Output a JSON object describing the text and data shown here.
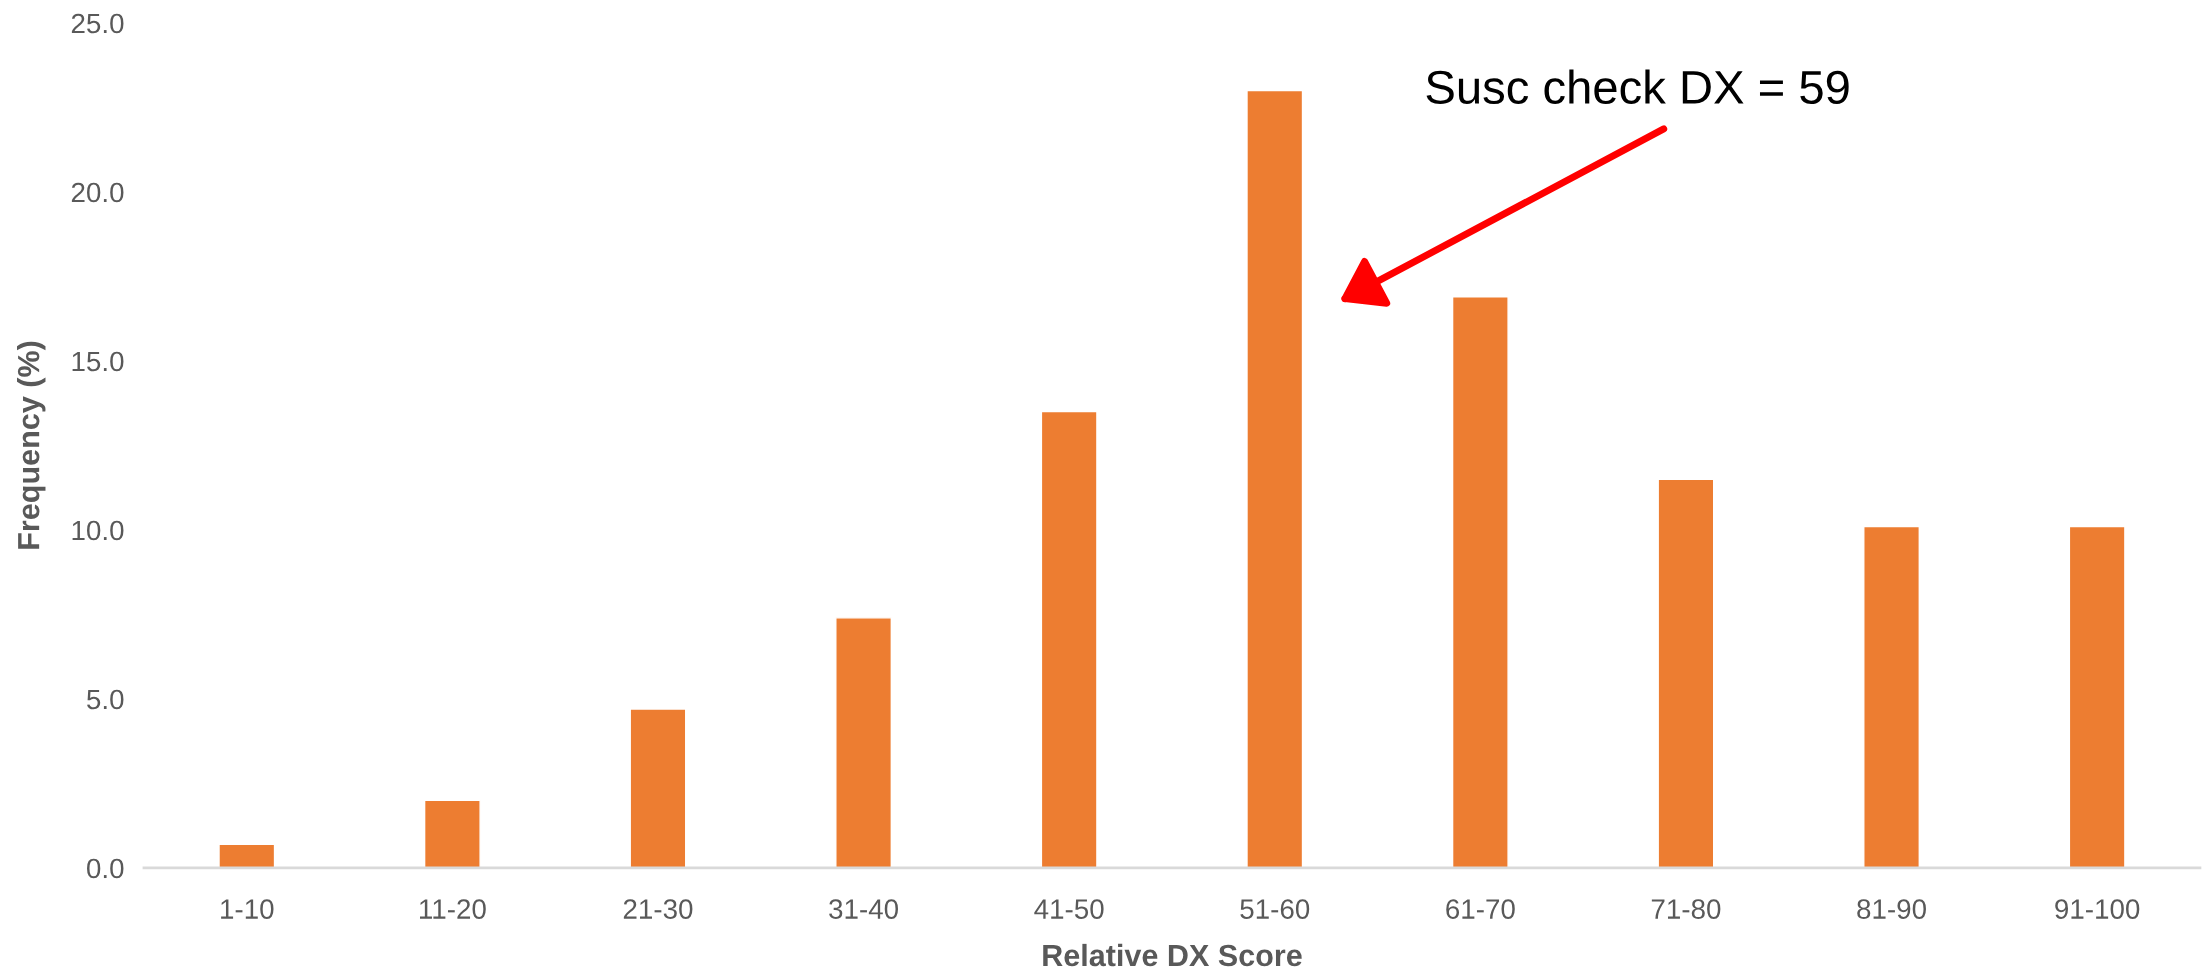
{
  "chart_data": {
    "type": "bar",
    "xlabel": "Relative DX Score",
    "ylabel": "Frequency (%)",
    "categories": [
      "1-10",
      "11-20",
      "21-30",
      "31-40",
      "41-50",
      "51-60",
      "61-70",
      "71-80",
      "81-90",
      "91-100"
    ],
    "values": [
      0.7,
      2.0,
      4.7,
      7.4,
      13.5,
      23.0,
      16.9,
      11.5,
      10.1,
      10.1
    ],
    "color": "#ed7d31",
    "ylim": [
      0,
      25
    ],
    "yticks": [
      {
        "value": 0,
        "label": "0.0"
      },
      {
        "value": 5,
        "label": "5.0"
      },
      {
        "value": 10,
        "label": "10.0"
      },
      {
        "value": 15,
        "label": "15.0"
      },
      {
        "value": 20,
        "label": "20.0"
      },
      {
        "value": 25,
        "label": "25.0"
      }
    ],
    "grid": false,
    "annotations": [
      "Susc check DX = 59"
    ]
  }
}
